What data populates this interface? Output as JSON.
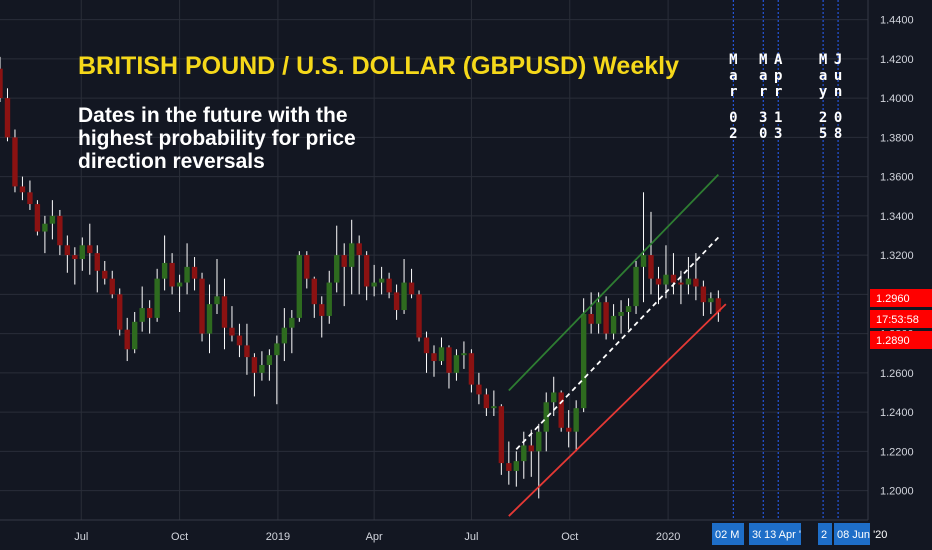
{
  "title": "BRITISH POUND / U.S. DOLLAR (GBPUSD) Weekly",
  "subtitle": "Dates in the future with the highest probability for price direction reversals",
  "vertical_date_labels": [
    {
      "text": "Mar 02",
      "x": "2020-03-02"
    },
    {
      "text": "Mar 30",
      "x": "2020-03-30"
    },
    {
      "text": "Apr 13",
      "x": "2020-04-13"
    },
    {
      "text": "May 25",
      "x": "2020-05-25"
    },
    {
      "text": "Jun 08",
      "x": "2020-06-08"
    }
  ],
  "axis_flags": [
    "02 M",
    "30",
    "13 Apr '",
    "2",
    "08 Jun '20"
  ],
  "price_flags": {
    "high": "1.2960",
    "countdown": "17:53:58",
    "low": "1.2890"
  },
  "colors": {
    "background": "#131722",
    "bull": "#2e6b1f",
    "bear": "#8b1212",
    "wick": "#ffffff",
    "upper_channel": "#2e7d32",
    "lower_channel": "#e53935",
    "midline": "#ffffff",
    "title": "#f5d81a",
    "flag_blue": "#1e6ec8",
    "flag_red": "#ff0000",
    "vline": "#2962ff"
  },
  "chart_data": {
    "type": "candlestick",
    "interval": "weekly",
    "symbol": "GBPUSD",
    "x_tick_labels": [
      {
        "label": "Jul",
        "date": "2018-07-01"
      },
      {
        "label": "Oct",
        "date": "2018-10-01"
      },
      {
        "label": "2019",
        "date": "2019-01-01"
      },
      {
        "label": "Apr",
        "date": "2019-04-01"
      },
      {
        "label": "Jul",
        "date": "2019-07-01"
      },
      {
        "label": "Oct",
        "date": "2019-10-01"
      },
      {
        "label": "2020",
        "date": "2020-01-01"
      }
    ],
    "x_range": [
      "2018-04-16",
      "2020-07-06"
    ],
    "y_ticks": [
      "1.2000",
      "1.2200",
      "1.2400",
      "1.2600",
      "1.2800",
      "1.3000",
      "1.3200",
      "1.3400",
      "1.3600",
      "1.3800",
      "1.4000",
      "1.4200",
      "1.4400"
    ],
    "y_range": [
      1.185,
      1.45
    ],
    "reversal_dates": [
      "2020-03-02",
      "2020-03-30",
      "2020-04-13",
      "2020-05-25",
      "2020-06-08"
    ],
    "channel": {
      "upper": [
        [
          "2019-08-05",
          1.251
        ],
        [
          "2020-02-17",
          1.361
        ]
      ],
      "midline": [
        [
          "2019-08-12",
          1.221
        ],
        [
          "2020-02-17",
          1.329
        ]
      ],
      "lower": [
        [
          "2019-08-05",
          1.187
        ],
        [
          "2020-02-24",
          1.295
        ]
      ]
    },
    "candles": [
      [
        "2018-04-16",
        1.415,
        1.421,
        1.398,
        1.4
      ],
      [
        "2018-04-23",
        1.4,
        1.405,
        1.378,
        1.38
      ],
      [
        "2018-04-30",
        1.38,
        1.384,
        1.352,
        1.355
      ],
      [
        "2018-05-07",
        1.355,
        1.36,
        1.348,
        1.352
      ],
      [
        "2018-05-14",
        1.352,
        1.358,
        1.343,
        1.346
      ],
      [
        "2018-05-21",
        1.346,
        1.348,
        1.33,
        1.332
      ],
      [
        "2018-05-28",
        1.332,
        1.34,
        1.321,
        1.336
      ],
      [
        "2018-06-04",
        1.336,
        1.348,
        1.328,
        1.34
      ],
      [
        "2018-06-11",
        1.34,
        1.343,
        1.32,
        1.325
      ],
      [
        "2018-06-18",
        1.325,
        1.33,
        1.311,
        1.32
      ],
      [
        "2018-06-25",
        1.32,
        1.324,
        1.305,
        1.318
      ],
      [
        "2018-07-02",
        1.318,
        1.329,
        1.312,
        1.325
      ],
      [
        "2018-07-09",
        1.325,
        1.336,
        1.31,
        1.321
      ],
      [
        "2018-07-16",
        1.321,
        1.325,
        1.301,
        1.312
      ],
      [
        "2018-07-23",
        1.312,
        1.317,
        1.305,
        1.308
      ],
      [
        "2018-07-30",
        1.308,
        1.312,
        1.298,
        1.3
      ],
      [
        "2018-08-06",
        1.3,
        1.303,
        1.279,
        1.282
      ],
      [
        "2018-08-13",
        1.282,
        1.288,
        1.266,
        1.272
      ],
      [
        "2018-08-20",
        1.272,
        1.291,
        1.27,
        1.286
      ],
      [
        "2018-08-27",
        1.286,
        1.304,
        1.281,
        1.293
      ],
      [
        "2018-09-03",
        1.293,
        1.297,
        1.28,
        1.288
      ],
      [
        "2018-09-10",
        1.288,
        1.313,
        1.286,
        1.308
      ],
      [
        "2018-09-17",
        1.308,
        1.33,
        1.302,
        1.316
      ],
      [
        "2018-09-24",
        1.316,
        1.321,
        1.3,
        1.304
      ],
      [
        "2018-10-01",
        1.304,
        1.31,
        1.291,
        1.306
      ],
      [
        "2018-10-08",
        1.306,
        1.326,
        1.3,
        1.314
      ],
      [
        "2018-10-15",
        1.314,
        1.319,
        1.302,
        1.308
      ],
      [
        "2018-10-22",
        1.308,
        1.311,
        1.276,
        1.28
      ],
      [
        "2018-10-29",
        1.28,
        1.305,
        1.27,
        1.295
      ],
      [
        "2018-11-05",
        1.295,
        1.318,
        1.29,
        1.299
      ],
      [
        "2018-11-12",
        1.299,
        1.308,
        1.272,
        1.283
      ],
      [
        "2018-11-19",
        1.283,
        1.294,
        1.276,
        1.279
      ],
      [
        "2018-11-26",
        1.279,
        1.285,
        1.268,
        1.274
      ],
      [
        "2018-12-03",
        1.274,
        1.285,
        1.259,
        1.268
      ],
      [
        "2018-12-10",
        1.268,
        1.27,
        1.248,
        1.26
      ],
      [
        "2018-12-17",
        1.26,
        1.271,
        1.256,
        1.264
      ],
      [
        "2018-12-24",
        1.264,
        1.272,
        1.256,
        1.269
      ],
      [
        "2018-12-31",
        1.269,
        1.279,
        1.244,
        1.275
      ],
      [
        "2019-01-07",
        1.275,
        1.293,
        1.266,
        1.283
      ],
      [
        "2019-01-14",
        1.283,
        1.292,
        1.27,
        1.288
      ],
      [
        "2019-01-21",
        1.288,
        1.322,
        1.286,
        1.32
      ],
      [
        "2019-01-28",
        1.32,
        1.322,
        1.303,
        1.308
      ],
      [
        "2019-02-04",
        1.308,
        1.309,
        1.288,
        1.295
      ],
      [
        "2019-02-11",
        1.295,
        1.299,
        1.278,
        1.289
      ],
      [
        "2019-02-18",
        1.289,
        1.312,
        1.285,
        1.306
      ],
      [
        "2019-02-25",
        1.306,
        1.335,
        1.301,
        1.32
      ],
      [
        "2019-03-04",
        1.32,
        1.326,
        1.294,
        1.314
      ],
      [
        "2019-03-11",
        1.314,
        1.338,
        1.3,
        1.326
      ],
      [
        "2019-03-18",
        1.326,
        1.33,
        1.3,
        1.32
      ],
      [
        "2019-03-25",
        1.32,
        1.322,
        1.297,
        1.304
      ],
      [
        "2019-04-01",
        1.304,
        1.315,
        1.299,
        1.306
      ],
      [
        "2019-04-08",
        1.306,
        1.314,
        1.3,
        1.308
      ],
      [
        "2019-04-15",
        1.308,
        1.311,
        1.298,
        1.301
      ],
      [
        "2019-04-22",
        1.301,
        1.305,
        1.287,
        1.292
      ],
      [
        "2019-04-29",
        1.292,
        1.318,
        1.29,
        1.306
      ],
      [
        "2019-05-06",
        1.306,
        1.313,
        1.298,
        1.3
      ],
      [
        "2019-05-13",
        1.3,
        1.302,
        1.276,
        1.278
      ],
      [
        "2019-05-20",
        1.278,
        1.281,
        1.26,
        1.27
      ],
      [
        "2019-05-27",
        1.27,
        1.274,
        1.258,
        1.266
      ],
      [
        "2019-06-03",
        1.266,
        1.278,
        1.264,
        1.273
      ],
      [
        "2019-06-10",
        1.273,
        1.274,
        1.252,
        1.26
      ],
      [
        "2019-06-17",
        1.26,
        1.272,
        1.256,
        1.269
      ],
      [
        "2019-06-24",
        1.269,
        1.276,
        1.262,
        1.27
      ],
      [
        "2019-07-01",
        1.27,
        1.272,
        1.25,
        1.254
      ],
      [
        "2019-07-08",
        1.254,
        1.26,
        1.244,
        1.249
      ],
      [
        "2019-07-15",
        1.249,
        1.252,
        1.238,
        1.242
      ],
      [
        "2019-07-22",
        1.242,
        1.251,
        1.238,
        1.243
      ],
      [
        "2019-07-29",
        1.243,
        1.244,
        1.208,
        1.214
      ],
      [
        "2019-08-05",
        1.214,
        1.225,
        1.203,
        1.21
      ],
      [
        "2019-08-12",
        1.21,
        1.22,
        1.202,
        1.215
      ],
      [
        "2019-08-19",
        1.215,
        1.23,
        1.206,
        1.223
      ],
      [
        "2019-08-26",
        1.223,
        1.231,
        1.207,
        1.22
      ],
      [
        "2019-09-02",
        1.22,
        1.234,
        1.196,
        1.23
      ],
      [
        "2019-09-09",
        1.23,
        1.25,
        1.22,
        1.245
      ],
      [
        "2019-09-16",
        1.245,
        1.258,
        1.238,
        1.25
      ],
      [
        "2019-09-23",
        1.25,
        1.251,
        1.23,
        1.232
      ],
      [
        "2019-09-30",
        1.232,
        1.241,
        1.222,
        1.23
      ],
      [
        "2019-10-07",
        1.23,
        1.246,
        1.22,
        1.242
      ],
      [
        "2019-10-14",
        1.242,
        1.298,
        1.24,
        1.29
      ],
      [
        "2019-10-21",
        1.29,
        1.301,
        1.28,
        1.285
      ],
      [
        "2019-10-28",
        1.285,
        1.301,
        1.28,
        1.296
      ],
      [
        "2019-11-04",
        1.296,
        1.299,
        1.277,
        1.28
      ],
      [
        "2019-11-11",
        1.28,
        1.295,
        1.277,
        1.289
      ],
      [
        "2019-11-18",
        1.289,
        1.297,
        1.28,
        1.291
      ],
      [
        "2019-11-25",
        1.291,
        1.298,
        1.282,
        1.294
      ],
      [
        "2019-12-02",
        1.294,
        1.317,
        1.29,
        1.314
      ],
      [
        "2019-12-09",
        1.314,
        1.352,
        1.296,
        1.32
      ],
      [
        "2019-12-16",
        1.32,
        1.342,
        1.3,
        1.308
      ],
      [
        "2019-12-23",
        1.308,
        1.314,
        1.295,
        1.305
      ],
      [
        "2019-12-30",
        1.305,
        1.325,
        1.298,
        1.31
      ],
      [
        "2020-01-06",
        1.31,
        1.321,
        1.3,
        1.306
      ],
      [
        "2020-01-13",
        1.306,
        1.312,
        1.295,
        1.305
      ],
      [
        "2020-01-20",
        1.305,
        1.319,
        1.3,
        1.308
      ],
      [
        "2020-01-27",
        1.308,
        1.321,
        1.297,
        1.304
      ],
      [
        "2020-02-03",
        1.304,
        1.307,
        1.289,
        1.296
      ],
      [
        "2020-02-10",
        1.296,
        1.301,
        1.29,
        1.298
      ],
      [
        "2020-02-17",
        1.298,
        1.302,
        1.286,
        1.291
      ]
    ]
  }
}
